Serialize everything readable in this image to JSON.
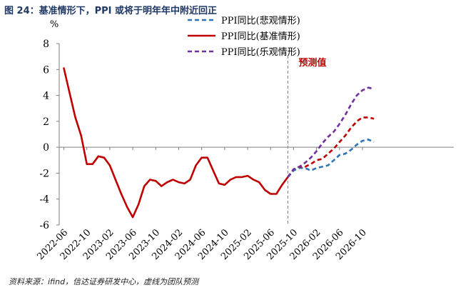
{
  "figure": {
    "title": "图 24：基准情形下，PPI 或将于明年年中附近回正",
    "source": "资料来源：ifind，信达证券研发中心，虚线为团队预测"
  },
  "chart_data": {
    "type": "line",
    "unit_label": "%",
    "ylim": [
      -6,
      8
    ],
    "yticks": [
      "8",
      "6",
      "4",
      "2",
      "0",
      "-2",
      "-4",
      "-6"
    ],
    "xticks": [
      "2022-06",
      "2022-10",
      "2023-02",
      "2023-06",
      "2023-10",
      "2024-02",
      "2024-06",
      "2024-10",
      "2025-02",
      "2025-06",
      "2025-10",
      "2026-02",
      "2026-06",
      "2026-10"
    ],
    "x_start": "2022-06",
    "forecast_marker": {
      "x": "2025-10",
      "label": "预测值"
    },
    "grid": false,
    "legend_position": "top-right",
    "history": {
      "x": [
        "2022-06",
        "2022-07",
        "2022-08",
        "2022-09",
        "2022-10",
        "2022-11",
        "2022-12",
        "2023-01",
        "2023-02",
        "2023-03",
        "2023-04",
        "2023-05",
        "2023-06",
        "2023-07",
        "2023-08",
        "2023-09",
        "2023-10",
        "2023-11",
        "2023-12",
        "2024-01",
        "2024-02",
        "2024-03",
        "2024-04",
        "2024-05",
        "2024-06",
        "2024-07",
        "2024-08",
        "2024-09",
        "2024-10",
        "2024-11",
        "2024-12",
        "2025-01",
        "2025-02",
        "2025-03",
        "2025-04",
        "2025-05",
        "2025-06",
        "2025-07",
        "2025-08",
        "2025-09"
      ],
      "values": [
        6.1,
        4.2,
        2.3,
        0.9,
        -1.3,
        -1.3,
        -0.7,
        -0.8,
        -1.4,
        -2.5,
        -3.6,
        -4.6,
        -5.4,
        -4.4,
        -3.0,
        -2.5,
        -2.6,
        -3.0,
        -2.7,
        -2.5,
        -2.7,
        -2.8,
        -2.5,
        -1.4,
        -0.8,
        -0.8,
        -1.8,
        -2.8,
        -2.9,
        -2.5,
        -2.3,
        -2.3,
        -2.2,
        -2.5,
        -2.7,
        -3.3,
        -3.6,
        -3.6,
        -2.9,
        -2.3
      ]
    },
    "series": [
      {
        "name": "PPI同比(悲观情形)",
        "color": "#2e75b6",
        "style": "dashed",
        "x": [
          "2025-09",
          "2025-10",
          "2025-11",
          "2025-12",
          "2026-01",
          "2026-02",
          "2026-03",
          "2026-04",
          "2026-05",
          "2026-06",
          "2026-07",
          "2026-08",
          "2026-09",
          "2026-10",
          "2026-11",
          "2026-12"
        ],
        "values": [
          -2.3,
          -1.8,
          -1.6,
          -1.6,
          -1.8,
          -1.6,
          -1.5,
          -1.4,
          -1.0,
          -0.6,
          -0.5,
          -0.2,
          0.2,
          0.5,
          0.6,
          0.4
        ]
      },
      {
        "name": "PPI同比(基准情形)",
        "color": "#c00000",
        "style": "dashed",
        "x": [
          "2025-09",
          "2025-10",
          "2025-11",
          "2025-12",
          "2026-01",
          "2026-02",
          "2026-03",
          "2026-04",
          "2026-05",
          "2026-06",
          "2026-07",
          "2026-08",
          "2026-09",
          "2026-10",
          "2026-11",
          "2026-12"
        ],
        "values": [
          -2.3,
          -1.7,
          -1.5,
          -1.5,
          -1.3,
          -1.0,
          -0.9,
          -0.5,
          -0.1,
          0.4,
          0.9,
          1.5,
          2.0,
          2.3,
          2.3,
          2.2
        ]
      },
      {
        "name": "PPI同比(乐观情形)",
        "color": "#7030a0",
        "style": "dashed",
        "x": [
          "2025-09",
          "2025-10",
          "2025-11",
          "2025-12",
          "2026-01",
          "2026-02",
          "2026-03",
          "2026-04",
          "2026-05",
          "2026-06",
          "2026-07",
          "2026-08",
          "2026-09",
          "2026-10",
          "2026-11",
          "2026-12"
        ],
        "values": [
          -2.3,
          -1.7,
          -1.5,
          -1.2,
          -0.8,
          -0.3,
          0.3,
          0.8,
          1.2,
          1.8,
          2.5,
          3.3,
          4.0,
          4.4,
          4.6,
          4.5
        ]
      }
    ],
    "legend": [
      {
        "label": "PPI同比(悲观情形)",
        "color": "#2e75b6",
        "style": "dashed"
      },
      {
        "label": "PPI同比(基准情形)",
        "color": "#c00000",
        "style": "solid"
      },
      {
        "label": "PPI同比(乐观情形)",
        "color": "#7030a0",
        "style": "dashed"
      }
    ],
    "colors": {
      "history": "#c00000",
      "axis": "#7f7f7f",
      "forecast_line": "#8c8c8c",
      "forecast_label": "#c00000"
    }
  }
}
